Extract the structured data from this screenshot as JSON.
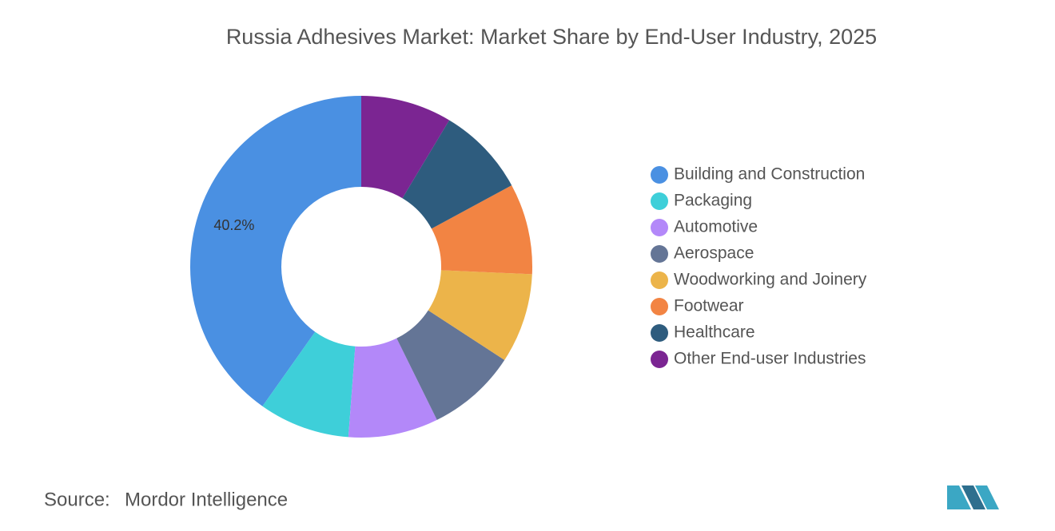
{
  "chart_data": {
    "type": "donut",
    "title": "Russia Adhesives Market: Market Share by End-User Industry, 2025",
    "categories": [
      "Building and Construction",
      "Packaging",
      "Automotive",
      "Aerospace",
      "Woodworking and Joinery",
      "Footwear",
      "Healthcare",
      "Other End-user Industries"
    ],
    "values": [
      40.2,
      8.6,
      8.5,
      8.5,
      8.5,
      8.6,
      8.5,
      8.6
    ],
    "value_labels": [
      "40.2%",
      null,
      null,
      null,
      null,
      null,
      null,
      null
    ],
    "colors": [
      "#4a90e2",
      "#3ecfd9",
      "#b388f9",
      "#647596",
      "#ecb44a",
      "#f28443",
      "#2e5c7e",
      "#7b2592"
    ],
    "legend": "right"
  },
  "source_label": "Source:",
  "source": "Mordor Intelligence"
}
